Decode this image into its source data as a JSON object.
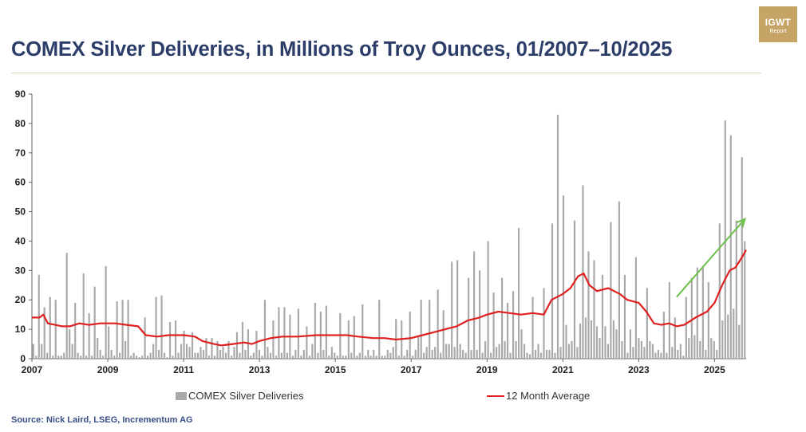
{
  "header": {
    "title": "COMEX Silver Deliveries, in Millions of Troy Ounces, 01/2007–10/2025",
    "logo_line1": "IGWT",
    "logo_line2": "Report"
  },
  "footer": {
    "source": "Source: Nick Laird, LSEG, Incrementum AG"
  },
  "colors": {
    "bars": "#a9a9a9",
    "average": "#e02020",
    "trend_arrow": "#6cc04a",
    "title": "#2b3d68",
    "gold": "#c6a466"
  },
  "chart_data": {
    "type": "bar",
    "title": "COMEX Silver Deliveries, in Millions of Troy Ounces, 01/2007–10/2025",
    "start": "2007-01",
    "end": "2025-10",
    "xlim": [
      2007,
      2025.8333
    ],
    "ylim": [
      0,
      90
    ],
    "ytick_step": 10,
    "y_ticks": [
      "0",
      "10",
      "20",
      "30",
      "40",
      "50",
      "60",
      "70",
      "80",
      "90"
    ],
    "x_ticks": [
      {
        "value": 2007,
        "label": "2007"
      },
      {
        "value": 2009,
        "label": "2009"
      },
      {
        "value": 2011,
        "label": "2011"
      },
      {
        "value": 2013,
        "label": "2013"
      },
      {
        "value": 2015,
        "label": "2015"
      },
      {
        "value": 2017,
        "label": "2017"
      },
      {
        "value": 2019,
        "label": "2019"
      },
      {
        "value": 2021,
        "label": "2021"
      },
      {
        "value": 2023,
        "label": "2023"
      },
      {
        "value": 2025,
        "label": "2025"
      }
    ],
    "series": [
      {
        "name": "COMEX Silver Deliveries",
        "type": "bar",
        "values": [
          5,
          1,
          28.5,
          5,
          17.5,
          2,
          21,
          1,
          20,
          1,
          1,
          2,
          36,
          10,
          5,
          19,
          2,
          1,
          29,
          1,
          15.5,
          1,
          24.5,
          7,
          3,
          1,
          31.5,
          11,
          3,
          1,
          19.5,
          2,
          20,
          6,
          20,
          1,
          2,
          1,
          0.5,
          1,
          14,
          1,
          2,
          5,
          21,
          3,
          21.5,
          2,
          0.5,
          12.5,
          1,
          13,
          2,
          5,
          9.5,
          5,
          4,
          9,
          2,
          2,
          4,
          3,
          7,
          1,
          7,
          1,
          6,
          3,
          4,
          2,
          6,
          1,
          4,
          9,
          2,
          12.5,
          3,
          10,
          1,
          2,
          9.5,
          3,
          1,
          20,
          4,
          2,
          13,
          1,
          17.5,
          2,
          17.5,
          2,
          15,
          1,
          3,
          17,
          1,
          3,
          11,
          1,
          5,
          19,
          2,
          16,
          3,
          18,
          1,
          4,
          2,
          1,
          15.5,
          1,
          1,
          13,
          2,
          14.5,
          1,
          2,
          18.5,
          1,
          3,
          1,
          3,
          1,
          20,
          1,
          1,
          3,
          2,
          4,
          13.5,
          1,
          13,
          1,
          3,
          16,
          1,
          3,
          8,
          20,
          2,
          4,
          20,
          3,
          4,
          23.5,
          2,
          16.5,
          5,
          5,
          33,
          4,
          33.5,
          5,
          3,
          2,
          27.5,
          3,
          36.5,
          3,
          30,
          2,
          6,
          40,
          2,
          22.5,
          4,
          5,
          27.5,
          6,
          19,
          2,
          23,
          6,
          44.5,
          10,
          5,
          2,
          1.5,
          21,
          3,
          5,
          2,
          24,
          3,
          3,
          46,
          2,
          83,
          4,
          55.5,
          11.5,
          5,
          6,
          47,
          4,
          12,
          59,
          14,
          36.5,
          13,
          33.5,
          11,
          7,
          28.5,
          11,
          5,
          46.5,
          13,
          10,
          53.5,
          6,
          28.5,
          2,
          10,
          4,
          34.5,
          7,
          6,
          4,
          24,
          6,
          5,
          2,
          3,
          2,
          16,
          2,
          26,
          4,
          14,
          3,
          5,
          1,
          21,
          7,
          27.5,
          8,
          31,
          6,
          31.5,
          3,
          26,
          7,
          6,
          3,
          46,
          13,
          81,
          15,
          76,
          17,
          47,
          11.5,
          68.5,
          40
        ]
      },
      {
        "name": "12 Month Average",
        "type": "line",
        "points": [
          [
            2007.0,
            14
          ],
          [
            2007.2,
            14
          ],
          [
            2007.3,
            15
          ],
          [
            2007.42,
            12
          ],
          [
            2007.8,
            11
          ],
          [
            2008.0,
            11
          ],
          [
            2008.25,
            12
          ],
          [
            2008.5,
            11.5
          ],
          [
            2008.8,
            12
          ],
          [
            2009.2,
            12
          ],
          [
            2009.5,
            11.5
          ],
          [
            2009.8,
            11
          ],
          [
            2010.0,
            8
          ],
          [
            2010.3,
            7.5
          ],
          [
            2010.6,
            8
          ],
          [
            2011.0,
            8
          ],
          [
            2011.3,
            7.5
          ],
          [
            2011.5,
            6
          ],
          [
            2011.8,
            5
          ],
          [
            2012.0,
            4.5
          ],
          [
            2012.3,
            5
          ],
          [
            2012.6,
            5.5
          ],
          [
            2012.8,
            5
          ],
          [
            2013.0,
            6
          ],
          [
            2013.3,
            7
          ],
          [
            2013.6,
            7.5
          ],
          [
            2014.0,
            7.5
          ],
          [
            2014.5,
            8
          ],
          [
            2015.0,
            8
          ],
          [
            2015.3,
            8
          ],
          [
            2015.6,
            7.5
          ],
          [
            2016.0,
            7
          ],
          [
            2016.3,
            7
          ],
          [
            2016.6,
            6.5
          ],
          [
            2017.0,
            7
          ],
          [
            2017.3,
            8
          ],
          [
            2017.6,
            9
          ],
          [
            2017.9,
            10
          ],
          [
            2018.2,
            11
          ],
          [
            2018.5,
            13
          ],
          [
            2018.8,
            14
          ],
          [
            2019.0,
            15
          ],
          [
            2019.3,
            16
          ],
          [
            2019.6,
            15.5
          ],
          [
            2019.9,
            15
          ],
          [
            2020.2,
            15.5
          ],
          [
            2020.5,
            15
          ],
          [
            2020.7,
            20
          ],
          [
            2021.0,
            22
          ],
          [
            2021.2,
            24
          ],
          [
            2021.4,
            28
          ],
          [
            2021.55,
            29
          ],
          [
            2021.7,
            25
          ],
          [
            2021.9,
            23
          ],
          [
            2022.2,
            24
          ],
          [
            2022.5,
            22
          ],
          [
            2022.7,
            20
          ],
          [
            2023.0,
            19
          ],
          [
            2023.2,
            16
          ],
          [
            2023.4,
            12
          ],
          [
            2023.6,
            11.5
          ],
          [
            2023.8,
            12
          ],
          [
            2024.0,
            11
          ],
          [
            2024.2,
            11.5
          ],
          [
            2024.5,
            14
          ],
          [
            2024.8,
            16
          ],
          [
            2025.0,
            19
          ],
          [
            2025.2,
            25
          ],
          [
            2025.4,
            30
          ],
          [
            2025.55,
            31
          ],
          [
            2025.7,
            34
          ],
          [
            2025.8333,
            37
          ]
        ]
      }
    ],
    "trend_arrow": {
      "from": [
        2024.0,
        21
      ],
      "to": [
        2025.8,
        47.5
      ]
    },
    "legend": [
      {
        "label": "COMEX Silver Deliveries",
        "kind": "bar"
      },
      {
        "label": "12 Month Average",
        "kind": "line"
      }
    ],
    "legend_position": "bottom"
  }
}
